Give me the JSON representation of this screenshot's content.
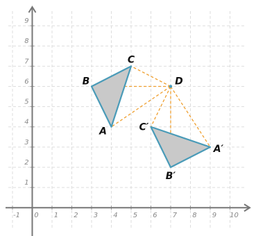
{
  "axes": {
    "xlim": [
      -1.35,
      11
    ],
    "ylim": [
      -1.4,
      10
    ],
    "xticks": [
      -1,
      0,
      1,
      2,
      3,
      4,
      5,
      6,
      7,
      8,
      9,
      10
    ],
    "yticks": [
      1,
      2,
      3,
      4,
      5,
      6,
      7,
      8,
      9
    ],
    "grid": true
  },
  "points": [
    {
      "label": "A",
      "x": 4,
      "y": 4
    },
    {
      "label": "B",
      "x": 3,
      "y": 6
    },
    {
      "label": "C",
      "x": 5,
      "y": 7
    },
    {
      "label": "D",
      "x": 7,
      "y": 6
    },
    {
      "label": "A′",
      "x": 9,
      "y": 3
    },
    {
      "label": "B′",
      "x": 7,
      "y": 2
    },
    {
      "label": "C′",
      "x": 6,
      "y": 4
    }
  ]
}
